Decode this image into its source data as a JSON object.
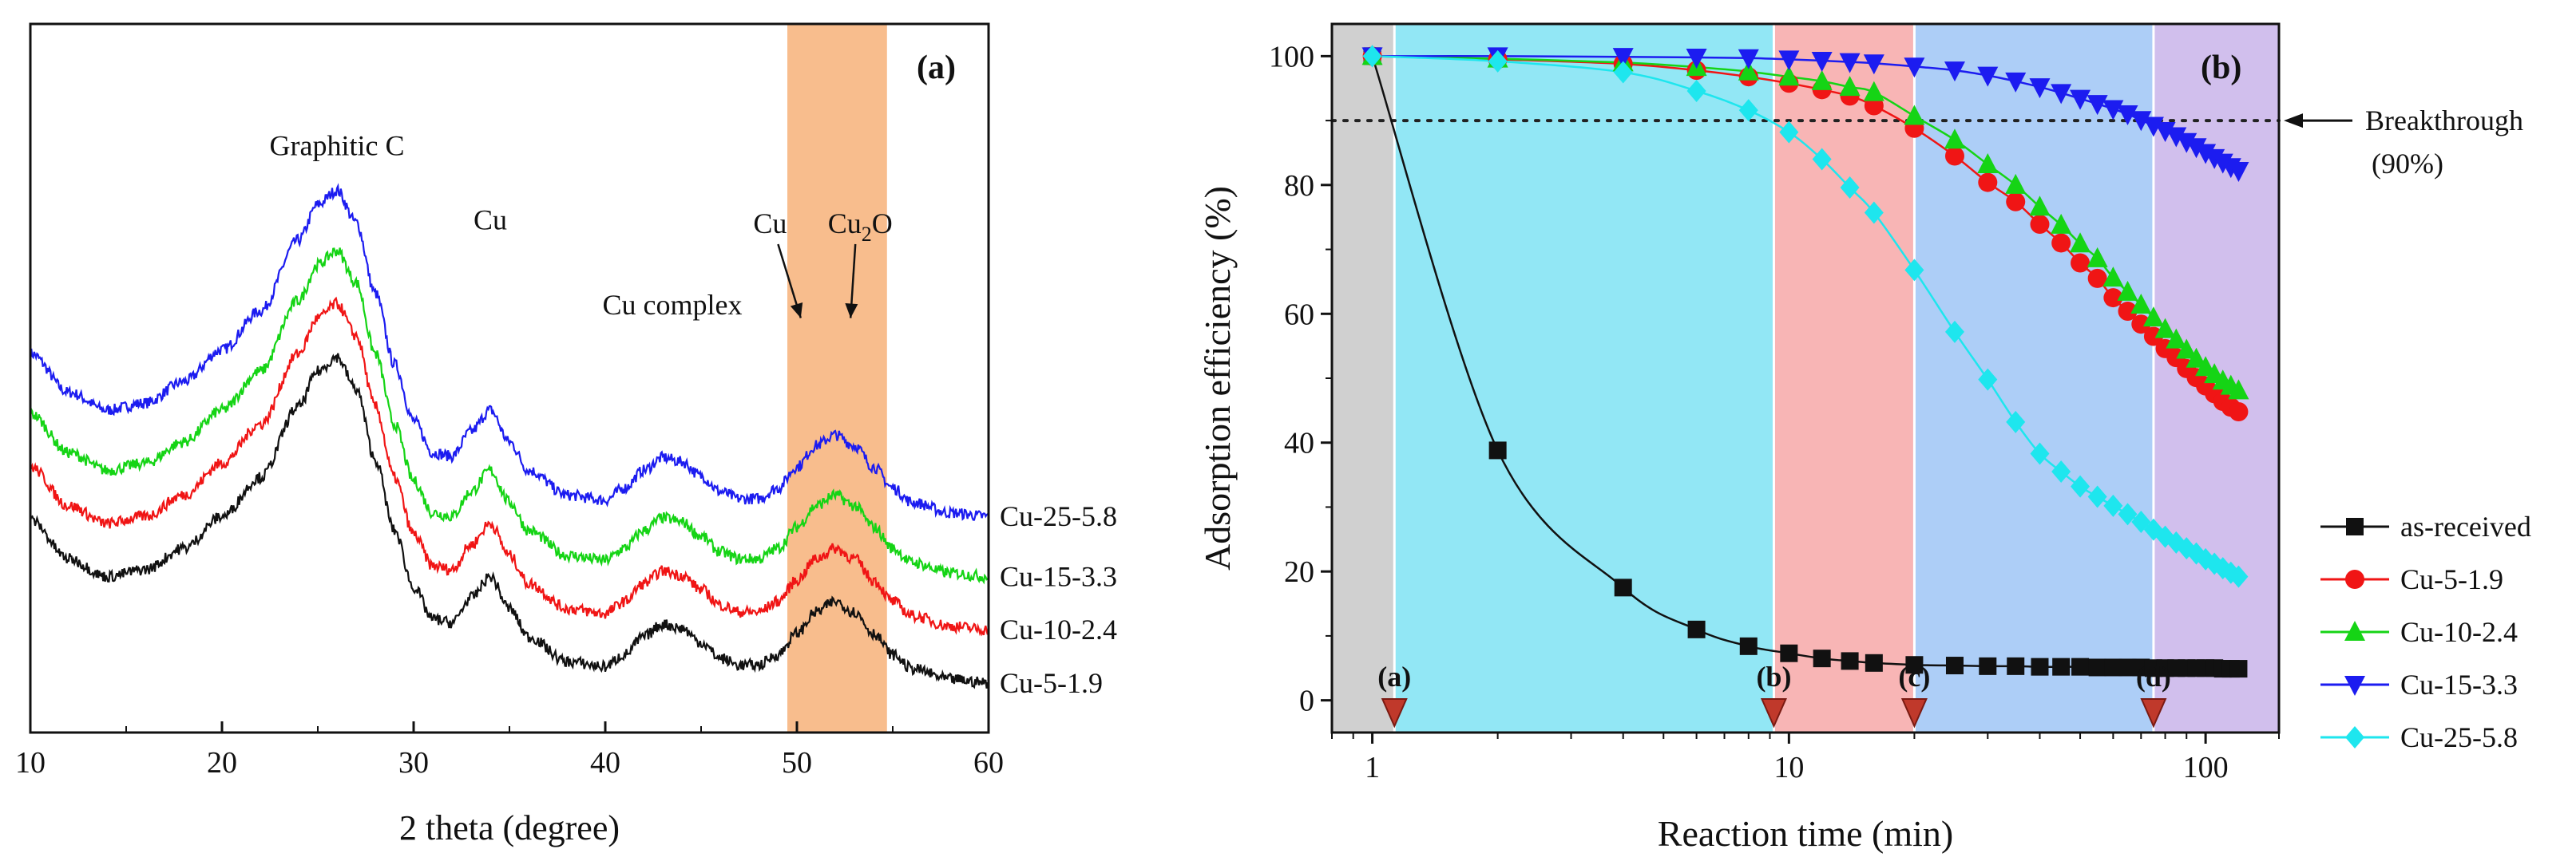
{
  "chart_data": [
    {
      "type": "line",
      "panel_label": "(a)",
      "xlabel": "2 theta (degree)",
      "ylabel": "",
      "xlim": [
        10,
        60
      ],
      "x_ticks": [
        "10",
        "20",
        "30",
        "40",
        "50",
        "60"
      ],
      "highlight_band": {
        "x": [
          49.5,
          54.7
        ],
        "color": "#f7b279"
      },
      "annotations": [
        {
          "text": "Graphitic C",
          "x": 26,
          "y": 8.15
        },
        {
          "text": "Cu",
          "x": 34,
          "y": 7.1
        },
        {
          "text": "Cu complex",
          "x": 43.5,
          "y": 5.9
        },
        {
          "text": "Cu",
          "x": 48.6,
          "y": 7.05,
          "arrow_to": [
            50.2,
            5.85
          ]
        },
        {
          "text": "Cu",
          "sub": "2",
          "text_after": "O",
          "x": 53.3,
          "y": 7.05,
          "arrow_to": [
            52.8,
            5.85
          ]
        }
      ],
      "series": [
        {
          "name": "Cu-25-5.8",
          "color": "#1c1cf0",
          "offset": 2.9
        },
        {
          "name": "Cu-15-3.3",
          "color": "#15d415",
          "offset": 2.05
        },
        {
          "name": "Cu-10-2.4",
          "color": "#f01515",
          "offset": 1.3
        },
        {
          "name": "Cu-5-1.9",
          "color": "#111111",
          "offset": 0.55
        }
      ],
      "profile": {
        "x": [
          10,
          12,
          14,
          16,
          18,
          20,
          22,
          24,
          25,
          26,
          27,
          28,
          29,
          30,
          31,
          32,
          33,
          34,
          35,
          36,
          38,
          40,
          41,
          42,
          43,
          44,
          45,
          46,
          47,
          48,
          49,
          50,
          51,
          52,
          53,
          54,
          55,
          56,
          58,
          60
        ],
        "y": [
          2.45,
          1.9,
          1.65,
          1.75,
          2.05,
          2.5,
          3.05,
          4.05,
          4.55,
          4.75,
          4.3,
          3.3,
          2.3,
          1.5,
          1.05,
          1.0,
          1.35,
          1.65,
          1.2,
          0.8,
          0.45,
          0.38,
          0.55,
          0.8,
          0.98,
          0.92,
          0.72,
          0.5,
          0.4,
          0.4,
          0.55,
          0.85,
          1.15,
          1.3,
          1.15,
          0.85,
          0.55,
          0.35,
          0.2,
          0.15
        ]
      },
      "ylim": [
        0,
        10
      ]
    },
    {
      "type": "line",
      "panel_label": "(b)",
      "xlabel": "Reaction time (min)",
      "ylabel": "Adsorption efficiency (%)",
      "x_scale": "log",
      "xlim": [
        0.8,
        150
      ],
      "ylim": [
        -5,
        105
      ],
      "x_ticks": [
        "1",
        "10",
        "100"
      ],
      "y_ticks": [
        "0",
        "20",
        "40",
        "60",
        "80",
        "100"
      ],
      "breakthrough": {
        "y": 90,
        "label_line1": "Breakthrough",
        "label_line2": "(90%)"
      },
      "regions": [
        {
          "x": [
            0.8,
            1.13
          ],
          "color": "#c8c8c8"
        },
        {
          "x": [
            1.13,
            9.2
          ],
          "color": "#7fe3f3"
        },
        {
          "x": [
            9.2,
            20
          ],
          "color": "#f7a8a8"
        },
        {
          "x": [
            20,
            75
          ],
          "color": "#9fc6f6"
        },
        {
          "x": [
            75,
            150
          ],
          "color": "#c9b4ea"
        }
      ],
      "markers": [
        {
          "label": "(a)",
          "x": 1.13
        },
        {
          "label": "(b)",
          "x": 9.2
        },
        {
          "label": "(c)",
          "x": 20
        },
        {
          "label": "(d)",
          "x": 75
        }
      ],
      "series": [
        {
          "name": "as-received",
          "color": "#111111",
          "marker": "square",
          "x": [
            1,
            2,
            4,
            6,
            8,
            10,
            12,
            14,
            16,
            20,
            25,
            30,
            35,
            40,
            45,
            50,
            55,
            60,
            65,
            70,
            75,
            80,
            85,
            90,
            95,
            100,
            105,
            110,
            115,
            120
          ],
          "y": [
            100,
            38.8,
            17.5,
            11,
            8.4,
            7.3,
            6.5,
            6.1,
            5.8,
            5.5,
            5.4,
            5.3,
            5.3,
            5.2,
            5.2,
            5.2,
            5.1,
            5.1,
            5.1,
            5.1,
            5.0,
            5.0,
            5.0,
            5.0,
            5.0,
            5.0,
            5.0,
            4.9,
            4.9,
            4.9
          ]
        },
        {
          "name": "Cu-5-1.9",
          "color": "#f01515",
          "marker": "circle",
          "x": [
            1,
            2,
            4,
            6,
            8,
            10,
            12,
            14,
            16,
            20,
            25,
            30,
            35,
            40,
            45,
            50,
            55,
            60,
            65,
            70,
            75,
            80,
            85,
            90,
            95,
            100,
            105,
            110,
            115,
            120
          ],
          "y": [
            100,
            99.5,
            98.8,
            97.8,
            96.8,
            95.8,
            94.8,
            93.8,
            92.3,
            88.8,
            84.5,
            80.4,
            77.4,
            73.9,
            71.0,
            67.9,
            65.5,
            62.5,
            60.4,
            58.4,
            56.5,
            54.6,
            53.2,
            51.5,
            50.1,
            48.8,
            47.6,
            46.4,
            45.5,
            44.8
          ]
        },
        {
          "name": "Cu-10-2.4",
          "color": "#15d415",
          "marker": "triangle-up",
          "x": [
            1,
            2,
            4,
            6,
            8,
            10,
            12,
            14,
            16,
            20,
            25,
            30,
            35,
            40,
            45,
            50,
            55,
            60,
            65,
            70,
            75,
            80,
            85,
            90,
            95,
            100,
            105,
            110,
            115,
            120
          ],
          "y": [
            100,
            99.6,
            99.0,
            98.3,
            97.6,
            96.8,
            96.1,
            95.2,
            94.4,
            90.7,
            87.0,
            83.2,
            80.0,
            76.6,
            73.8,
            70.9,
            68.6,
            65.6,
            63.4,
            61.4,
            59.4,
            57.6,
            56.0,
            54.4,
            53.0,
            51.7,
            50.6,
            49.6,
            48.8,
            48.1
          ]
        },
        {
          "name": "Cu-15-3.3",
          "color": "#1c1cf0",
          "marker": "triangle-down",
          "x": [
            1,
            2,
            4,
            6,
            8,
            10,
            12,
            14,
            16,
            20,
            25,
            30,
            35,
            40,
            45,
            50,
            55,
            60,
            65,
            70,
            75,
            80,
            85,
            90,
            95,
            100,
            105,
            110,
            115,
            120
          ],
          "y": [
            100,
            100,
            99.9,
            99.8,
            99.7,
            99.5,
            99.3,
            99.1,
            98.9,
            98.4,
            97.8,
            97.0,
            96.1,
            95.2,
            94.3,
            93.4,
            92.6,
            91.8,
            91.0,
            90.1,
            89.2,
            88.4,
            87.6,
            86.7,
            85.9,
            85.0,
            84.2,
            83.5,
            82.8,
            82.2
          ]
        },
        {
          "name": "Cu-25-5.8",
          "color": "#1ee6ee",
          "marker": "diamond",
          "x": [
            1,
            2,
            4,
            6,
            8,
            10,
            12,
            14,
            16,
            20,
            25,
            30,
            35,
            40,
            45,
            50,
            55,
            60,
            65,
            70,
            75,
            80,
            85,
            90,
            95,
            100,
            105,
            110,
            115,
            120
          ],
          "y": [
            100,
            99.2,
            97.5,
            94.6,
            91.6,
            88.2,
            84.0,
            79.6,
            75.7,
            66.8,
            57.2,
            49.8,
            43.2,
            38.3,
            35.5,
            33.2,
            31.6,
            30.2,
            28.9,
            27.7,
            26.5,
            25.4,
            24.5,
            23.6,
            22.8,
            21.9,
            21.2,
            20.5,
            19.8,
            19.2
          ]
        }
      ],
      "legend_position": "bottom-right"
    }
  ]
}
